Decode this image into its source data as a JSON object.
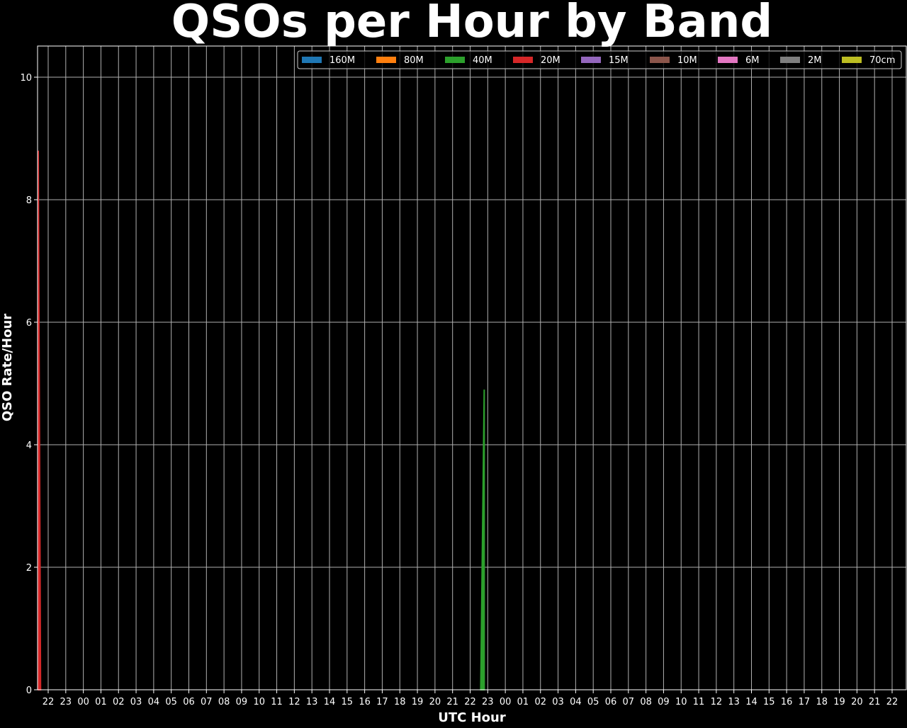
{
  "chart_data": {
    "type": "area",
    "stacked": true,
    "title": "QSOs per Hour by Band",
    "xlabel": "UTC Hour",
    "ylabel": "QSO Rate/Hour",
    "ylim": [
      0,
      10.5
    ],
    "yticks": [
      0,
      2,
      4,
      6,
      8,
      10
    ],
    "xticks": [
      "22",
      "23",
      "00",
      "01",
      "02",
      "03",
      "04",
      "05",
      "06",
      "07",
      "08",
      "09",
      "10",
      "11",
      "12",
      "13",
      "14",
      "15",
      "16",
      "17",
      "18",
      "19",
      "20",
      "21",
      "22",
      "23",
      "00",
      "01",
      "02",
      "03",
      "04",
      "05",
      "06",
      "07",
      "08",
      "09",
      "10",
      "11",
      "12",
      "13",
      "14",
      "15",
      "16",
      "17",
      "18",
      "19",
      "20",
      "21",
      "22"
    ],
    "grid": true,
    "legend_placement": "top-right",
    "legend": [
      {
        "name": "160M",
        "color": "#1f77b4"
      },
      {
        "name": "80M",
        "color": "#ff7f0e"
      },
      {
        "name": "40M",
        "color": "#2ca02c"
      },
      {
        "name": "20M",
        "color": "#d62728"
      },
      {
        "name": "15M",
        "color": "#9467bd"
      },
      {
        "name": "10M",
        "color": "#8c564b"
      },
      {
        "name": "6M",
        "color": "#e377c2"
      },
      {
        "name": "2M",
        "color": "#7f7f7f"
      },
      {
        "name": "70cm",
        "color": "#bcbd22"
      }
    ],
    "series": [
      {
        "name": "20M",
        "color": "#d62728",
        "points": [
          {
            "time": "21:24",
            "day": 1,
            "value": 8.8
          },
          {
            "time": "21:34",
            "day": 1,
            "value": 0
          }
        ]
      },
      {
        "name": "40M",
        "color": "#2ca02c",
        "points": [
          {
            "time": "22:36",
            "day": 2,
            "value": 0
          },
          {
            "time": "22:48",
            "day": 2,
            "value": 4.9
          }
        ]
      }
    ]
  }
}
